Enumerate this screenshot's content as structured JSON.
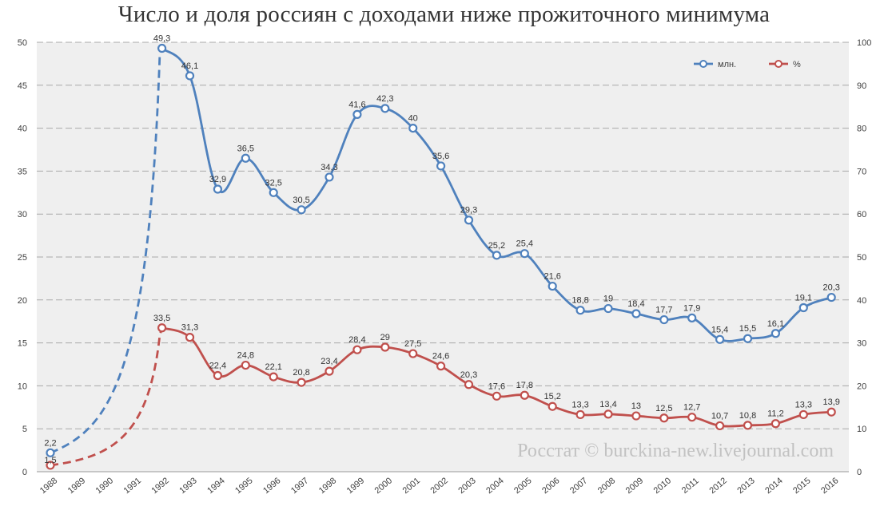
{
  "chart_data": {
    "type": "line",
    "title": "Число и доля россиян с доходами ниже прожиточного минимума",
    "categories": [
      "1988",
      "1989",
      "1990",
      "1991",
      "1992",
      "1993",
      "1994",
      "1995",
      "1996",
      "1997",
      "1998",
      "1999",
      "2000",
      "2001",
      "2002",
      "2003",
      "2004",
      "2005",
      "2006",
      "2007",
      "2008",
      "2009",
      "2010",
      "2011",
      "2012",
      "2013",
      "2014",
      "2015",
      "2016"
    ],
    "y_left": {
      "min": 0,
      "max": 50,
      "step": 5
    },
    "y_right": {
      "min": 0,
      "max": 100,
      "step": 10
    },
    "grid": "horizontal-dashed",
    "legend_position": "top-right",
    "series": [
      {
        "name": "млн.",
        "axis": "left",
        "color": "#4f81bd",
        "values": [
          2.2,
          null,
          null,
          null,
          49.3,
          46.1,
          32.9,
          36.5,
          32.5,
          30.5,
          34.3,
          41.6,
          42.3,
          40,
          35.6,
          29.3,
          25.2,
          25.4,
          21.6,
          18.8,
          19,
          18.4,
          17.7,
          17.9,
          15.4,
          15.5,
          16.1,
          19.1,
          20.3
        ],
        "labels": [
          "2,2",
          "",
          "",
          "",
          "49,3",
          "46,1",
          "32,9",
          "36,5",
          "32,5",
          "30,5",
          "34,3",
          "41,6",
          "42,3",
          "40",
          "35,6",
          "29,3",
          "25,2",
          "25,4",
          "21,6",
          "18,8",
          "19",
          "18,4",
          "17,7",
          "17,9",
          "15,4",
          "15,5",
          "16,1",
          "19,1",
          "20,3"
        ]
      },
      {
        "name": "%",
        "axis": "right",
        "color": "#c0504d",
        "values": [
          1.5,
          null,
          null,
          null,
          33.5,
          31.3,
          22.4,
          24.8,
          22.1,
          20.8,
          23.4,
          28.4,
          29,
          27.5,
          24.6,
          20.3,
          17.6,
          17.8,
          15.2,
          13.3,
          13.4,
          13,
          12.5,
          12.7,
          10.7,
          10.8,
          11.2,
          13.3,
          13.9
        ],
        "labels": [
          "1,5",
          "",
          "",
          "",
          "33,5",
          "31,3",
          "22,4",
          "24,8",
          "22,1",
          "20,8",
          "23,4",
          "28,4",
          "29",
          "27,5",
          "24,6",
          "20,3",
          "17,6",
          "17,8",
          "15,2",
          "13,3",
          "13,4",
          "13",
          "12,5",
          "12,7",
          "10,7",
          "10,8",
          "11,2",
          "13,3",
          "13,9"
        ]
      }
    ],
    "dashed_segment": {
      "from": "1988",
      "to": "1992"
    },
    "watermark": "Росстат © burckina-new.livejournal.com"
  }
}
